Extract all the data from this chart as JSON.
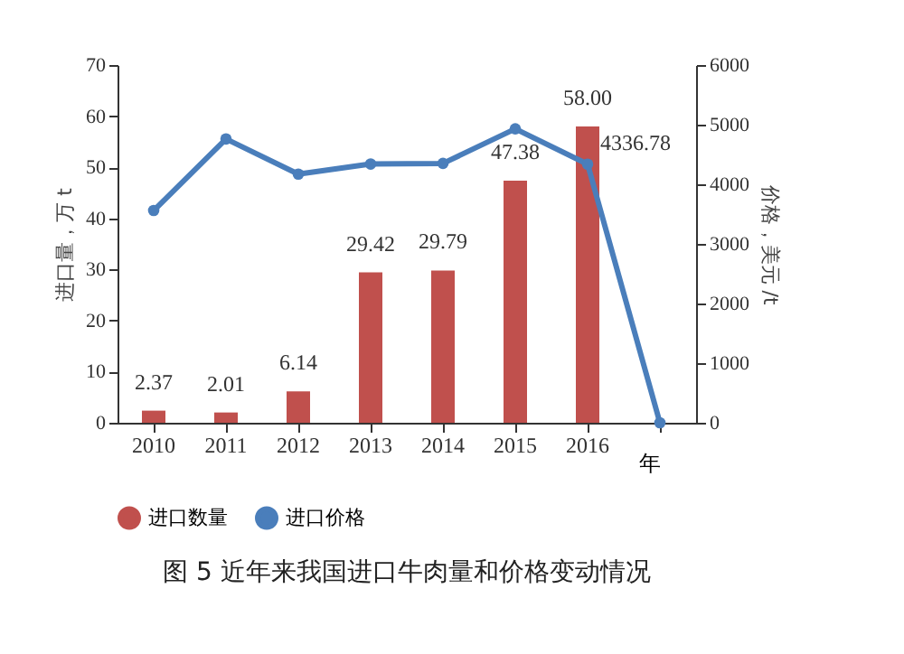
{
  "chart_data": {
    "type": "bar",
    "title": "图 5  近年来我国进口牛肉量和价格变动情况",
    "xlabel": "年",
    "ylabel": "进口量，万 t",
    "y2label": "价格，美元 /t",
    "categories": [
      "2010",
      "2011",
      "2012",
      "2013",
      "2014",
      "2015",
      "2016",
      null
    ],
    "series": [
      {
        "name": "进口数量",
        "color": "#c0504d",
        "values": [
          2.37,
          2.01,
          6.14,
          29.42,
          29.79,
          47.38,
          58.0,
          null
        ],
        "value_labels": [
          "2.37",
          "2.01",
          "6.14",
          "29.42",
          "29.79",
          "47.38",
          "58.00",
          null
        ]
      },
      {
        "name": "进口价格",
        "type": "line",
        "axis": "y2",
        "color": "#4a7ebb",
        "marker": "circle",
        "values": [
          3560,
          4760,
          4170,
          4340,
          4350,
          4930,
          4336.78,
          0
        ],
        "value_labels": [
          null,
          null,
          null,
          null,
          null,
          null,
          "4336.78",
          null
        ]
      }
    ],
    "ylim": [
      0,
      70
    ],
    "yticks": [
      0,
      10,
      20,
      30,
      40,
      50,
      60,
      70
    ],
    "y2lim": [
      0,
      6000
    ],
    "y2ticks": [
      0,
      1000,
      2000,
      3000,
      4000,
      5000,
      6000
    ],
    "grid": false,
    "legend": "bottom"
  }
}
